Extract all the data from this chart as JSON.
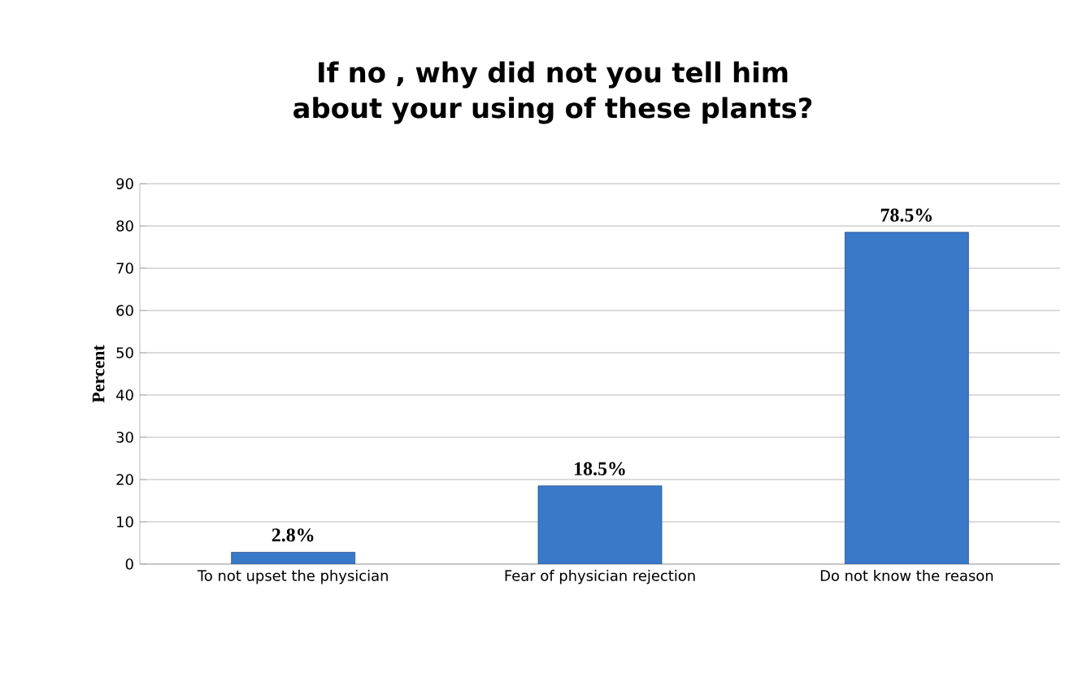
{
  "chart_data": {
    "type": "bar",
    "title": "If no , why did not you tell him about your using of these plants?",
    "ylabel": "Percent",
    "categories": [
      "To not upset the physician",
      "Fear of physician rejection",
      "Do not know the reason"
    ],
    "values": [
      2.8,
      18.5,
      78.5
    ],
    "value_labels": [
      "2.8%",
      "18.5%",
      "78.5%"
    ],
    "color": "#3a78c8",
    "ylim": [
      0,
      90
    ],
    "yticks": [
      0,
      10,
      20,
      30,
      40,
      50,
      60,
      70,
      80,
      90
    ],
    "grid": "y"
  }
}
